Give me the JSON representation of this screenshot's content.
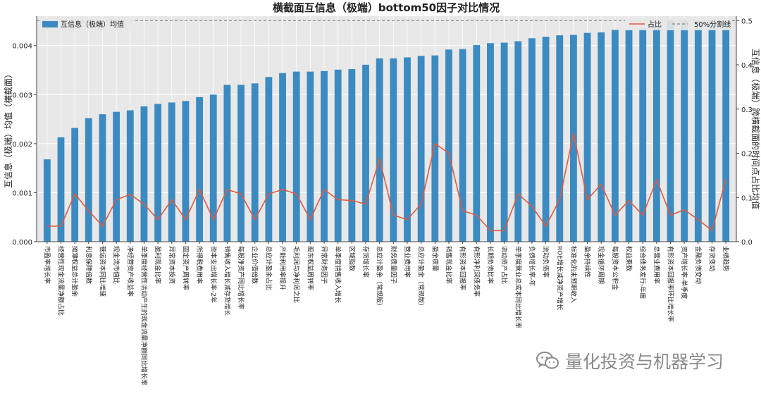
{
  "chart_data": {
    "type": "bar",
    "title": "横截面互信息（极端）bottom50因子对比情况",
    "ylabel": "互信息（极端）均值（横截面）",
    "ylabel_right": "互信息（极端）跨横截面的时间点占比均值",
    "ylim": [
      0,
      0.0046
    ],
    "ylim_right": [
      0,
      0.51
    ],
    "yticks": [
      "0.000",
      "0.001",
      "0.002",
      "0.003",
      "0.004"
    ],
    "yticks_right": [
      "0.0",
      "0.1",
      "0.2",
      "0.3",
      "0.4",
      "0.5"
    ],
    "grid": true,
    "legend_left": "互信息（极端）均值",
    "legend_right": [
      "占比",
      "50%分割线"
    ],
    "reference_line": 0.5,
    "colors": {
      "bar": "#3b8bc2",
      "line": "#e05a3f",
      "refline": "#888888",
      "plot_bg": "#e8e8e8",
      "grid": "#ffffff"
    },
    "categories": [
      "市盈率增长率",
      "经营性现金流量净额占比",
      "摊薄权益总计盈余",
      "利息保障倍数",
      "营运资本同比增速",
      "现金流市值比",
      "净经营资产收益率",
      "单季度经营性活动产生的现金流量净额同比增长率",
      "盈利现金比率",
      "异常资本投资",
      "固定资产周转率",
      "所得税费用率",
      "资本支出增长率-2年",
      "销售收入增长减存货增长",
      "每股净资产同比增长率",
      "企业价值倍数",
      "总应计盈余占比",
      "产能利用率提升",
      "毛利润与净利润之比",
      "股东权益周转率",
      "异常财务因子",
      "单季度销售收入增长",
      "区域指数",
      "存货增长率",
      "总应计盈余（常规版）",
      "财务质量因子",
      "营业费用率",
      "总应计盈余（常规版）",
      "盈余质量",
      "销售现金比率",
      "有形资本回报率",
      "有形净利润债务率",
      "长期负债比率",
      "流动资产占比",
      "单季度营业总成本同比增长率",
      "负债增长率-年",
      "流动负债率",
      "ROE增长减净资产增长",
      "标准化的未预期收入",
      "盈余持续性",
      "现金循环周期",
      "每股资本公积金",
      "权益乘数",
      "综合债务发行-年度",
      "总营业费用率",
      "有形资本回报率环比增长率",
      "资产增长率-单季度",
      "金融负债变动",
      "存货变动",
      "业绩趋势"
    ],
    "values": [
      0.00168,
      0.00213,
      0.00232,
      0.00252,
      0.0026,
      0.00265,
      0.00268,
      0.00276,
      0.00281,
      0.00284,
      0.00287,
      0.00295,
      0.003,
      0.0032,
      0.0032,
      0.00323,
      0.00336,
      0.00344,
      0.00347,
      0.00347,
      0.00348,
      0.00351,
      0.00352,
      0.00361,
      0.00374,
      0.00374,
      0.00376,
      0.00379,
      0.0038,
      0.00392,
      0.00393,
      0.00401,
      0.00405,
      0.00406,
      0.00409,
      0.00415,
      0.00418,
      0.00421,
      0.00422,
      0.00426,
      0.00427,
      0.00432,
      0.00432,
      0.00435,
      0.00439,
      0.0045,
      0.0045,
      0.0045,
      0.0045,
      0.0045
    ],
    "line_values": [
      0.035,
      0.035,
      0.108,
      0.07,
      0.035,
      0.095,
      0.107,
      0.085,
      0.05,
      0.095,
      0.05,
      0.118,
      0.05,
      0.118,
      0.108,
      0.05,
      0.108,
      0.118,
      0.108,
      0.05,
      0.118,
      0.095,
      0.093,
      0.085,
      0.187,
      0.06,
      0.05,
      0.085,
      0.222,
      0.2,
      0.07,
      0.06,
      0.025,
      0.025,
      0.108,
      0.08,
      0.035,
      0.095,
      0.245,
      0.095,
      0.13,
      0.06,
      0.093,
      0.06,
      0.14,
      0.06,
      0.072,
      0.05,
      0.025,
      0.142
    ]
  },
  "watermark": {
    "text": "量化投资与机器学习",
    "icon": "wechat-icon"
  }
}
